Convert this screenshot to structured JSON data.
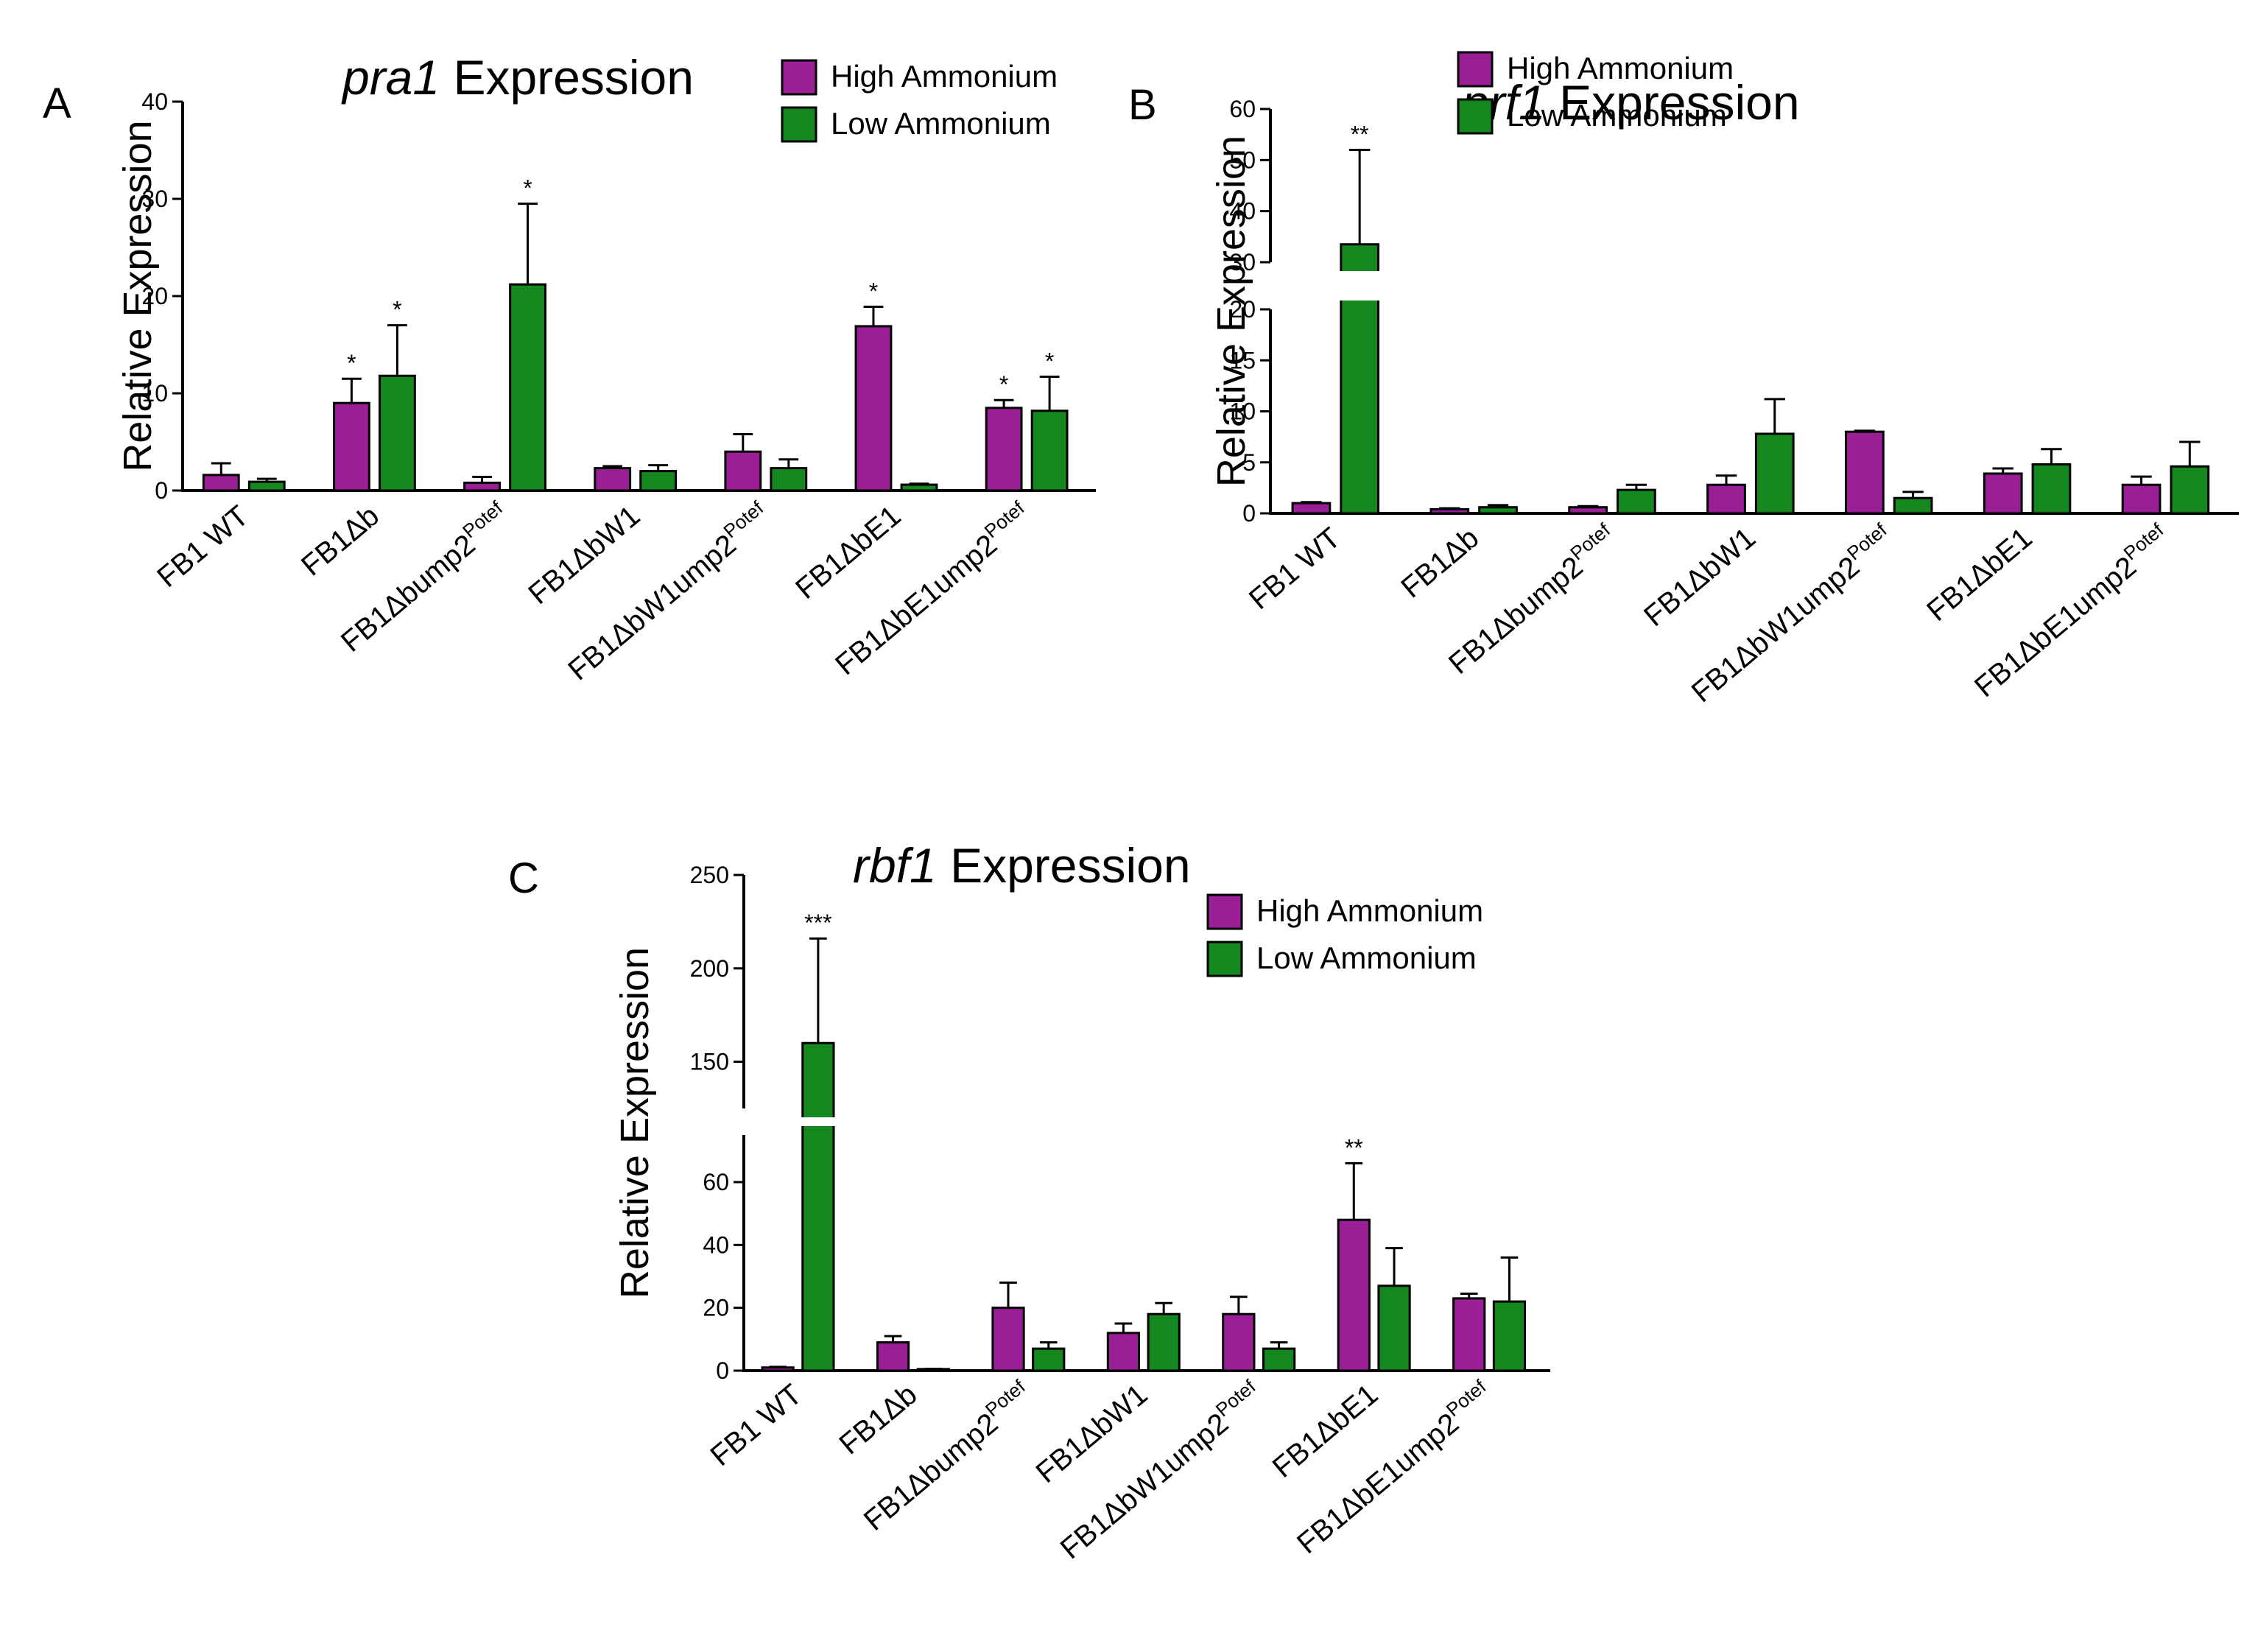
{
  "colors": {
    "high": "#9a1e96",
    "low": "#14881e"
  },
  "chart_data": [
    {
      "panel": "A",
      "type": "bar",
      "title_gene": "pra1",
      "title_rest": "Expression",
      "ylabel": "Relative Expression",
      "xlabel": "",
      "ylim": [
        0,
        40
      ],
      "yticks": [
        0,
        10,
        20,
        30,
        40
      ],
      "grid": false,
      "legend_placement": "top-right",
      "categories": [
        {
          "base": "FB1 WT",
          "sup": ""
        },
        {
          "base": "FB1Δb",
          "sup": ""
        },
        {
          "base": "FB1Δbump2",
          "sup": "Potef"
        },
        {
          "base": "FB1ΔbW1",
          "sup": ""
        },
        {
          "base": "FB1ΔbW1ump2",
          "sup": "Potef"
        },
        {
          "base": "FB1ΔbE1",
          "sup": ""
        },
        {
          "base": "FB1ΔbE1ump2",
          "sup": "Potef"
        }
      ],
      "series": [
        {
          "name": "High Ammonium",
          "color": "high",
          "values": [
            1.6,
            9.0,
            0.8,
            2.3,
            4.0,
            16.9,
            8.5
          ],
          "errors": [
            1.2,
            2.5,
            0.6,
            0.2,
            1.8,
            2.0,
            0.8
          ],
          "sig": [
            "",
            "*",
            "",
            "",
            "",
            "*",
            "*"
          ]
        },
        {
          "name": "Low Ammonium",
          "color": "low",
          "values": [
            0.9,
            11.8,
            21.2,
            2.0,
            2.3,
            0.6,
            8.2
          ],
          "errors": [
            0.3,
            5.2,
            8.3,
            0.6,
            0.9,
            0.1,
            3.5
          ],
          "sig": [
            "",
            "*",
            "*",
            "",
            "",
            "",
            "*"
          ]
        }
      ]
    },
    {
      "panel": "B",
      "type": "bar",
      "title_gene": "prf1",
      "title_rest": "Expression",
      "ylabel": "Relative Expression",
      "xlabel": "",
      "ylim": [
        0,
        60
      ],
      "axis_break": [
        20,
        30
      ],
      "yticks": [
        0,
        5,
        10,
        15,
        20,
        30,
        40,
        50,
        60
      ],
      "grid": false,
      "legend_placement": "top-right",
      "categories": [
        {
          "base": "FB1 WT",
          "sup": ""
        },
        {
          "base": "FB1Δb",
          "sup": ""
        },
        {
          "base": "FB1Δbump2",
          "sup": "Potef"
        },
        {
          "base": "FB1ΔbW1",
          "sup": ""
        },
        {
          "base": "FB1ΔbW1ump2",
          "sup": "Potef"
        },
        {
          "base": "FB1ΔbE1",
          "sup": ""
        },
        {
          "base": "FB1ΔbE1ump2",
          "sup": "Potef"
        }
      ],
      "series": [
        {
          "name": "High Ammonium",
          "color": "high",
          "values": [
            1.0,
            0.4,
            0.6,
            2.8,
            8.0,
            3.9,
            2.8
          ],
          "errors": [
            0.1,
            0.1,
            0.1,
            0.9,
            0.1,
            0.5,
            0.8
          ],
          "sig": [
            "",
            "",
            "",
            "",
            "",
            "",
            ""
          ]
        },
        {
          "name": "Low Ammonium",
          "color": "low",
          "values": [
            33.5,
            0.6,
            2.3,
            7.8,
            1.5,
            4.8,
            4.6
          ],
          "errors": [
            18.5,
            0.2,
            0.5,
            3.4,
            0.6,
            1.5,
            2.4
          ],
          "sig": [
            "**",
            "",
            "",
            "",
            "",
            "",
            ""
          ]
        }
      ]
    },
    {
      "panel": "C",
      "type": "bar",
      "title_gene": "rbf1",
      "title_rest": "Expression",
      "ylabel": "Relative Expression",
      "xlabel": "",
      "ylim": [
        0,
        250
      ],
      "axis_break": [
        75,
        125
      ],
      "yticks": [
        0,
        20,
        40,
        60,
        150,
        200,
        250
      ],
      "grid": false,
      "legend_placement": "top-right",
      "categories": [
        {
          "base": "FB1 WT",
          "sup": ""
        },
        {
          "base": "FB1Δb",
          "sup": ""
        },
        {
          "base": "FB1Δbump2",
          "sup": "Potef"
        },
        {
          "base": "FB1ΔbW1",
          "sup": ""
        },
        {
          "base": "FB1ΔbW1ump2",
          "sup": "Potef"
        },
        {
          "base": "FB1ΔbE1",
          "sup": ""
        },
        {
          "base": "FB1ΔbE1ump2",
          "sup": "Potef"
        }
      ],
      "series": [
        {
          "name": "High Ammonium",
          "color": "high",
          "values": [
            1.0,
            9.0,
            20.0,
            12.0,
            18.0,
            48.0,
            23.0
          ],
          "errors": [
            0.2,
            2.0,
            8.0,
            3.0,
            5.5,
            18.0,
            1.5
          ],
          "sig": [
            "",
            "",
            "",
            "",
            "",
            "**",
            ""
          ]
        },
        {
          "name": "Low Ammonium",
          "color": "low",
          "values": [
            160.0,
            0.5,
            7.0,
            18.0,
            7.0,
            27.0,
            22.0
          ],
          "errors": [
            56.0,
            0.1,
            2.0,
            3.5,
            2.0,
            12.0,
            14.0
          ],
          "sig": [
            "***",
            "",
            "",
            "",
            "",
            "",
            ""
          ]
        }
      ]
    }
  ]
}
